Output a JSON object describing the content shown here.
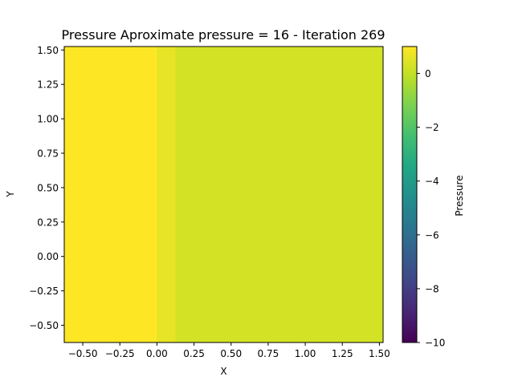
{
  "chart_data": {
    "type": "heatmap",
    "title": "Pressure Aproximate pressure = 16 - Iteration 269",
    "xlabel": "X",
    "ylabel": "Y",
    "xlim": [
      -0.625,
      1.525
    ],
    "ylim": [
      -0.625,
      1.525
    ],
    "x_ticks": [
      -0.5,
      -0.25,
      0.0,
      0.25,
      0.5,
      0.75,
      1.0,
      1.25,
      1.5
    ],
    "y_ticks": [
      -0.5,
      -0.25,
      0.0,
      0.25,
      0.5,
      0.75,
      1.0,
      1.25,
      1.5
    ],
    "x_tick_labels": [
      "−0.50",
      "−0.25",
      "0.00",
      "0.25",
      "0.50",
      "0.75",
      "1.00",
      "1.25",
      "1.50"
    ],
    "y_tick_labels": [
      "−0.50",
      "−0.25",
      "0.00",
      "0.25",
      "0.50",
      "0.75",
      "1.00",
      "1.25",
      "1.50"
    ],
    "colormap": "viridis",
    "colorbar": {
      "label": "Pressure",
      "range": [
        -10,
        1
      ],
      "ticks": [
        0,
        -2,
        -4,
        -6,
        -8,
        -10
      ],
      "tick_labels": [
        "0",
        "−2",
        "−4",
        "−6",
        "−8",
        "−10"
      ]
    },
    "regions": [
      {
        "x_range": [
          -0.625,
          0.0
        ],
        "y_range": [
          -0.625,
          1.525
        ],
        "value": 1.0
      },
      {
        "x_range": [
          0.0,
          0.125
        ],
        "y_range": [
          -0.625,
          1.525
        ],
        "value": 0.6
      },
      {
        "x_range": [
          0.125,
          1.525
        ],
        "y_range": [
          -0.625,
          1.525
        ],
        "value": 0.3
      }
    ],
    "grid": false,
    "legend": "none"
  }
}
